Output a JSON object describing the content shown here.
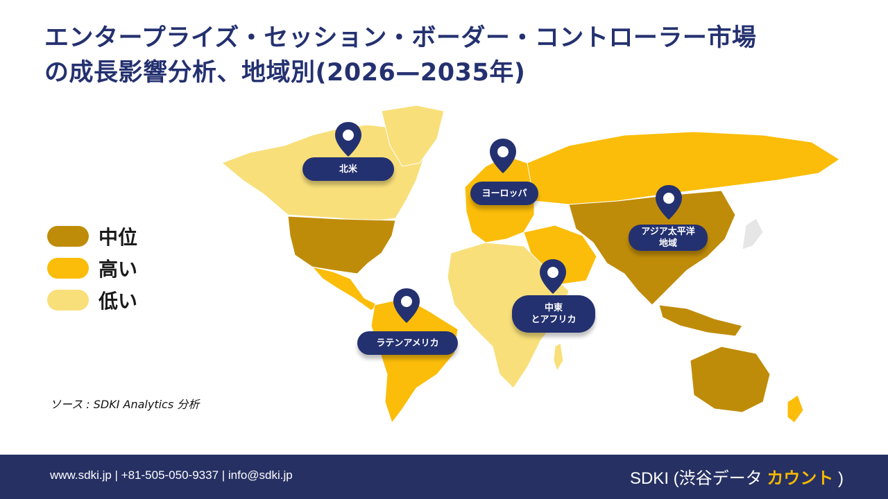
{
  "title": {
    "line1": "エンタープライズ・セッション・ボーダー・コントローラー市場",
    "line2": "の成長影響分析、地域別(2026—2035年)"
  },
  "legend": [
    {
      "label": "中位",
      "color": "#bf8c0a"
    },
    {
      "label": "高い",
      "color": "#fbbd0a"
    },
    {
      "label": "低い",
      "color": "#f8df7a"
    }
  ],
  "regions": {
    "north_america": "北米",
    "europe": "ヨーロッパ",
    "asia_pacific_line1": "アジア太平洋",
    "asia_pacific_line2": "地域",
    "middle_east_line1": "中東",
    "middle_east_line2": "とアフリカ",
    "latin_america": "ラテンアメリカ"
  },
  "source": "ソース : SDKI Analytics 分析",
  "footer": {
    "contact": "www.sdki.jp | +81-505-050-9337 | info@sdki.jp",
    "brand_prefix": "SDKI (渋谷データ",
    "brand_accent": "カウント",
    "brand_suffix": ")"
  },
  "colors": {
    "navy": "#243170",
    "medium": "#bf8c0a",
    "high": "#fbbd0a",
    "low": "#f8df7a"
  }
}
